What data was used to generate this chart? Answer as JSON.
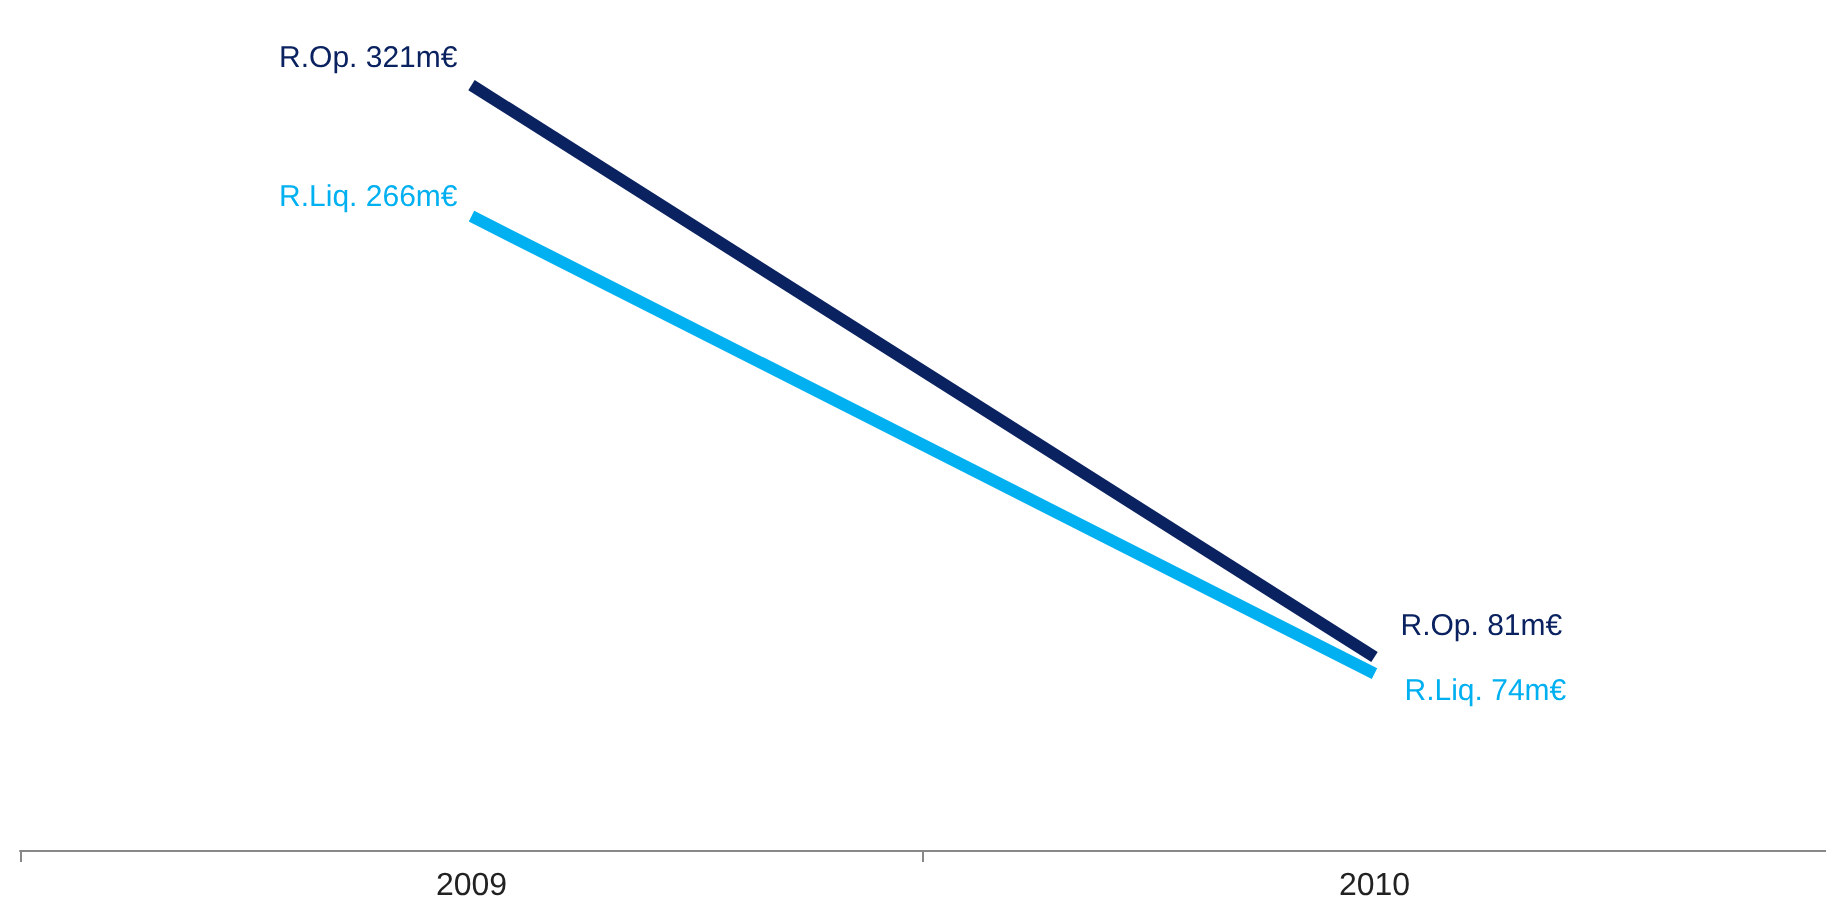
{
  "chart_data": {
    "type": "line",
    "categories": [
      "2009",
      "2010"
    ],
    "series": [
      {
        "color": "#0b2260",
        "values": [
          321,
          81
        ],
        "value_labels": [
          "R.Op. 321m€",
          "R.Op. 81m€"
        ]
      },
      {
        "color": "#00b0f0",
        "values": [
          266,
          74
        ],
        "value_labels": [
          "R.Liq. 266m€",
          "R.Liq. 74m€"
        ]
      }
    ],
    "grid": false,
    "marker": "none",
    "line_style": "solid"
  }
}
